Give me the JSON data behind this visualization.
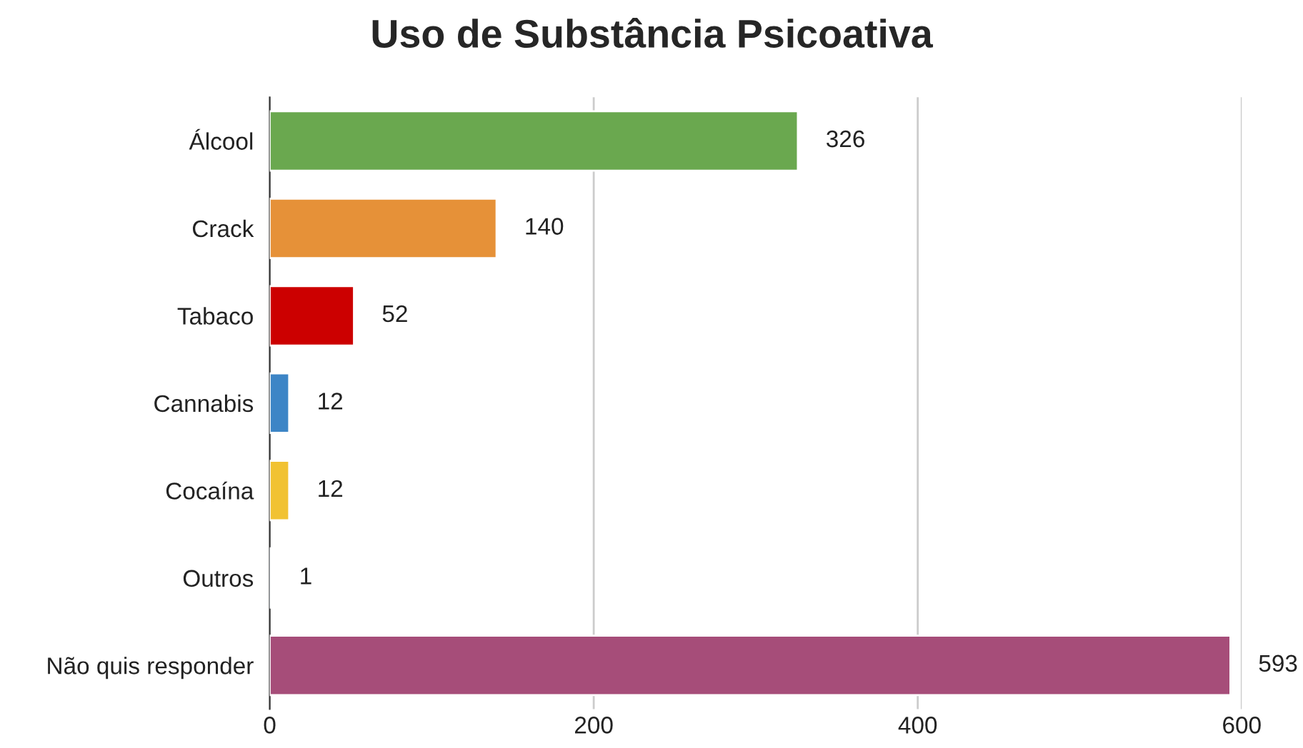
{
  "chart_data": {
    "type": "bar",
    "orientation": "horizontal",
    "title": "Uso de Substância Psicoativa",
    "categories": [
      "Álcool",
      "Crack",
      "Tabaco",
      "Cannabis",
      "Cocaína",
      "Outros",
      "Não quis responder"
    ],
    "values": [
      326,
      140,
      52,
      12,
      12,
      1,
      593
    ],
    "colors": [
      "#6aa84f",
      "#e69138",
      "#cc0000",
      "#3d85c6",
      "#f1c232",
      "#a4c2f4",
      "#a64d79"
    ],
    "xlim": [
      0,
      600
    ],
    "xticks": [
      0,
      200,
      400,
      600
    ],
    "grid": "x",
    "data_labels": true,
    "legend": false
  }
}
